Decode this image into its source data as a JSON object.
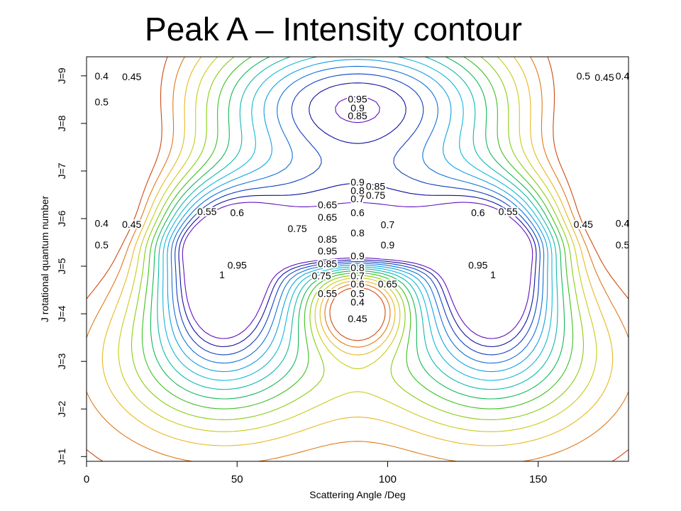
{
  "title": "Peak A – Intensity contour",
  "chart_data": {
    "type": "contour",
    "title": "Peak A – Intensity contour",
    "xlabel": "Scattering Angle /Deg",
    "ylabel": "J rotational quantum number",
    "x_ticks": [
      0,
      50,
      100,
      150
    ],
    "xlim": [
      0,
      180
    ],
    "y_ticks": [
      "J=1",
      "J=2",
      "J=3",
      "J=4",
      "J=5",
      "J=6",
      "J=7",
      "J=8",
      "J=9"
    ],
    "ylim": [
      0.9,
      9.4
    ],
    "grid": false,
    "contour_levels": [
      0.35,
      0.4,
      0.45,
      0.5,
      0.55,
      0.6,
      0.65,
      0.7,
      0.75,
      0.8,
      0.85,
      0.9,
      0.95,
      1
    ],
    "level_colors": [
      "#cc4a10",
      "#e07818",
      "#e8b820",
      "#c8cc18",
      "#88cc10",
      "#3cc020",
      "#10b858",
      "#10b8a8",
      "#10b8d8",
      "#10a0e0",
      "#1070d8",
      "#1040c0",
      "#1010a0",
      "#6010c0"
    ],
    "labels": [
      {
        "text": "0.95",
        "x": 90,
        "y": 8.51
      },
      {
        "text": "0.9",
        "x": 90,
        "y": 8.33
      },
      {
        "text": "0.85",
        "x": 90,
        "y": 8.16
      },
      {
        "text": "0.9",
        "x": 90,
        "y": 6.77
      },
      {
        "text": "0.85",
        "x": 96,
        "y": 6.68
      },
      {
        "text": "0.8",
        "x": 90,
        "y": 6.59
      },
      {
        "text": "0.75",
        "x": 96,
        "y": 6.49
      },
      {
        "text": "0.7",
        "x": 90,
        "y": 6.42
      },
      {
        "text": "0.65",
        "x": 80,
        "y": 6.29
      },
      {
        "text": "0.6",
        "x": 90,
        "y": 6.13
      },
      {
        "text": "0.65",
        "x": 80,
        "y": 6.03
      },
      {
        "text": "0.7",
        "x": 100,
        "y": 5.87
      },
      {
        "text": "0.75",
        "x": 70,
        "y": 5.79
      },
      {
        "text": "0.8",
        "x": 90,
        "y": 5.7
      },
      {
        "text": "0.85",
        "x": 80,
        "y": 5.57
      },
      {
        "text": "0.9",
        "x": 100,
        "y": 5.45
      },
      {
        "text": "0.95",
        "x": 80,
        "y": 5.32
      },
      {
        "text": "0.9",
        "x": 90,
        "y": 5.22
      },
      {
        "text": "0.85",
        "x": 80,
        "y": 5.05
      },
      {
        "text": "0.8",
        "x": 90,
        "y": 4.97
      },
      {
        "text": "0.75",
        "x": 78,
        "y": 4.8
      },
      {
        "text": "0.7",
        "x": 90,
        "y": 4.8
      },
      {
        "text": "0.65",
        "x": 100,
        "y": 4.63
      },
      {
        "text": "0.6",
        "x": 90,
        "y": 4.63
      },
      {
        "text": "0.55",
        "x": 80,
        "y": 4.43
      },
      {
        "text": "0.5",
        "x": 90,
        "y": 4.43
      },
      {
        "text": "0.4",
        "x": 90,
        "y": 4.25
      },
      {
        "text": "0.45",
        "x": 90,
        "y": 3.9
      },
      {
        "text": "0.95",
        "x": 50,
        "y": 5.02
      },
      {
        "text": "0.95",
        "x": 130,
        "y": 5.02
      },
      {
        "text": "1",
        "x": 45,
        "y": 4.82
      },
      {
        "text": "1",
        "x": 135,
        "y": 4.82
      },
      {
        "text": "0.4",
        "x": 5,
        "y": 9.0
      },
      {
        "text": "0.45",
        "x": 15,
        "y": 8.98
      },
      {
        "text": "0.5",
        "x": 5,
        "y": 8.45
      },
      {
        "text": "0.5",
        "x": 165,
        "y": 9.0
      },
      {
        "text": "0.45",
        "x": 172,
        "y": 8.97
      },
      {
        "text": "0.4",
        "x": 178,
        "y": 9.0
      },
      {
        "text": "0.55",
        "x": 40,
        "y": 6.15
      },
      {
        "text": "0.6",
        "x": 50,
        "y": 6.13
      },
      {
        "text": "0.6",
        "x": 130,
        "y": 6.13
      },
      {
        "text": "0.55",
        "x": 140,
        "y": 6.15
      },
      {
        "text": "0.4",
        "x": 5,
        "y": 5.9
      },
      {
        "text": "0.45",
        "x": 15,
        "y": 5.88
      },
      {
        "text": "0.45",
        "x": 165,
        "y": 5.88
      },
      {
        "text": "0.4",
        "x": 178,
        "y": 5.9
      },
      {
        "text": "0.5",
        "x": 5,
        "y": 5.45
      },
      {
        "text": "0.5",
        "x": 178,
        "y": 5.45
      }
    ]
  }
}
